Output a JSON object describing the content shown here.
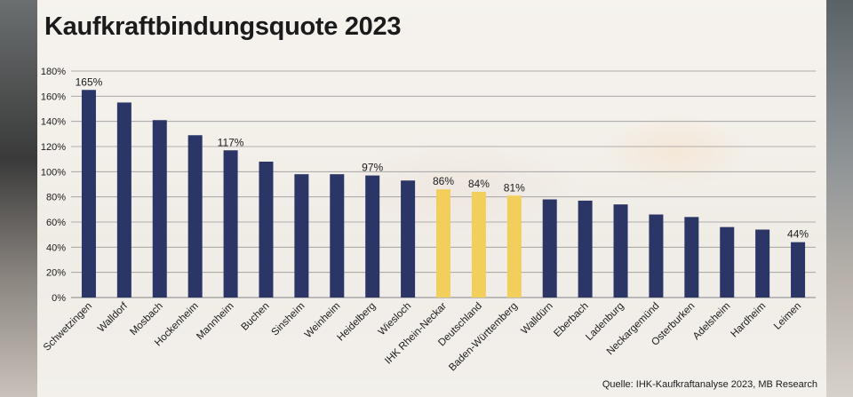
{
  "title": "Kaufkraftbindungsquote 2023",
  "source": "Quelle: IHK-Kaufkraftanalyse 2023, MB Research",
  "colors": {
    "default_bar": "#2b3566",
    "highlight_bar": "#f2cf5b",
    "grid": "#9a9a9a",
    "text": "#1b1b1b"
  },
  "chart_data": {
    "type": "bar",
    "title": "Kaufkraftbindungsquote 2023",
    "xlabel": "",
    "ylabel": "",
    "ylim": [
      0,
      180
    ],
    "yticks": [
      0,
      20,
      40,
      60,
      80,
      100,
      120,
      140,
      160,
      180
    ],
    "ytick_labels": [
      "0%",
      "20%",
      "40%",
      "60%",
      "80%",
      "100%",
      "120%",
      "140%",
      "160%",
      "180%"
    ],
    "grid": true,
    "legend": "none",
    "categories": [
      "Schwetzingen",
      "Walldorf",
      "Mosbach",
      "Hockenheim",
      "Mannheim",
      "Buchen",
      "Sinsheim",
      "Weinheim",
      "Heidelberg",
      "Wiesloch",
      "IHK Rhein-Neckar",
      "Deutschland",
      "Baden-Württemberg",
      "Walldürn",
      "Eberbach",
      "Ladenburg",
      "Neckargemünd",
      "Osterburken",
      "Adelsheim",
      "Hardheim",
      "Leimen"
    ],
    "values": [
      165,
      155,
      141,
      129,
      117,
      108,
      98,
      98,
      97,
      93,
      86,
      84,
      81,
      78,
      77,
      74,
      66,
      64,
      56,
      54,
      44
    ],
    "highlight": [
      false,
      false,
      false,
      false,
      false,
      false,
      false,
      false,
      false,
      false,
      true,
      true,
      true,
      false,
      false,
      false,
      false,
      false,
      false,
      false,
      false
    ],
    "data_labels": [
      "165%",
      "",
      "",
      "",
      "117%",
      "",
      "",
      "",
      "97%",
      "",
      "86%",
      "84%",
      "81%",
      "",
      "",
      "",
      "",
      "",
      "",
      "",
      "44%"
    ]
  }
}
